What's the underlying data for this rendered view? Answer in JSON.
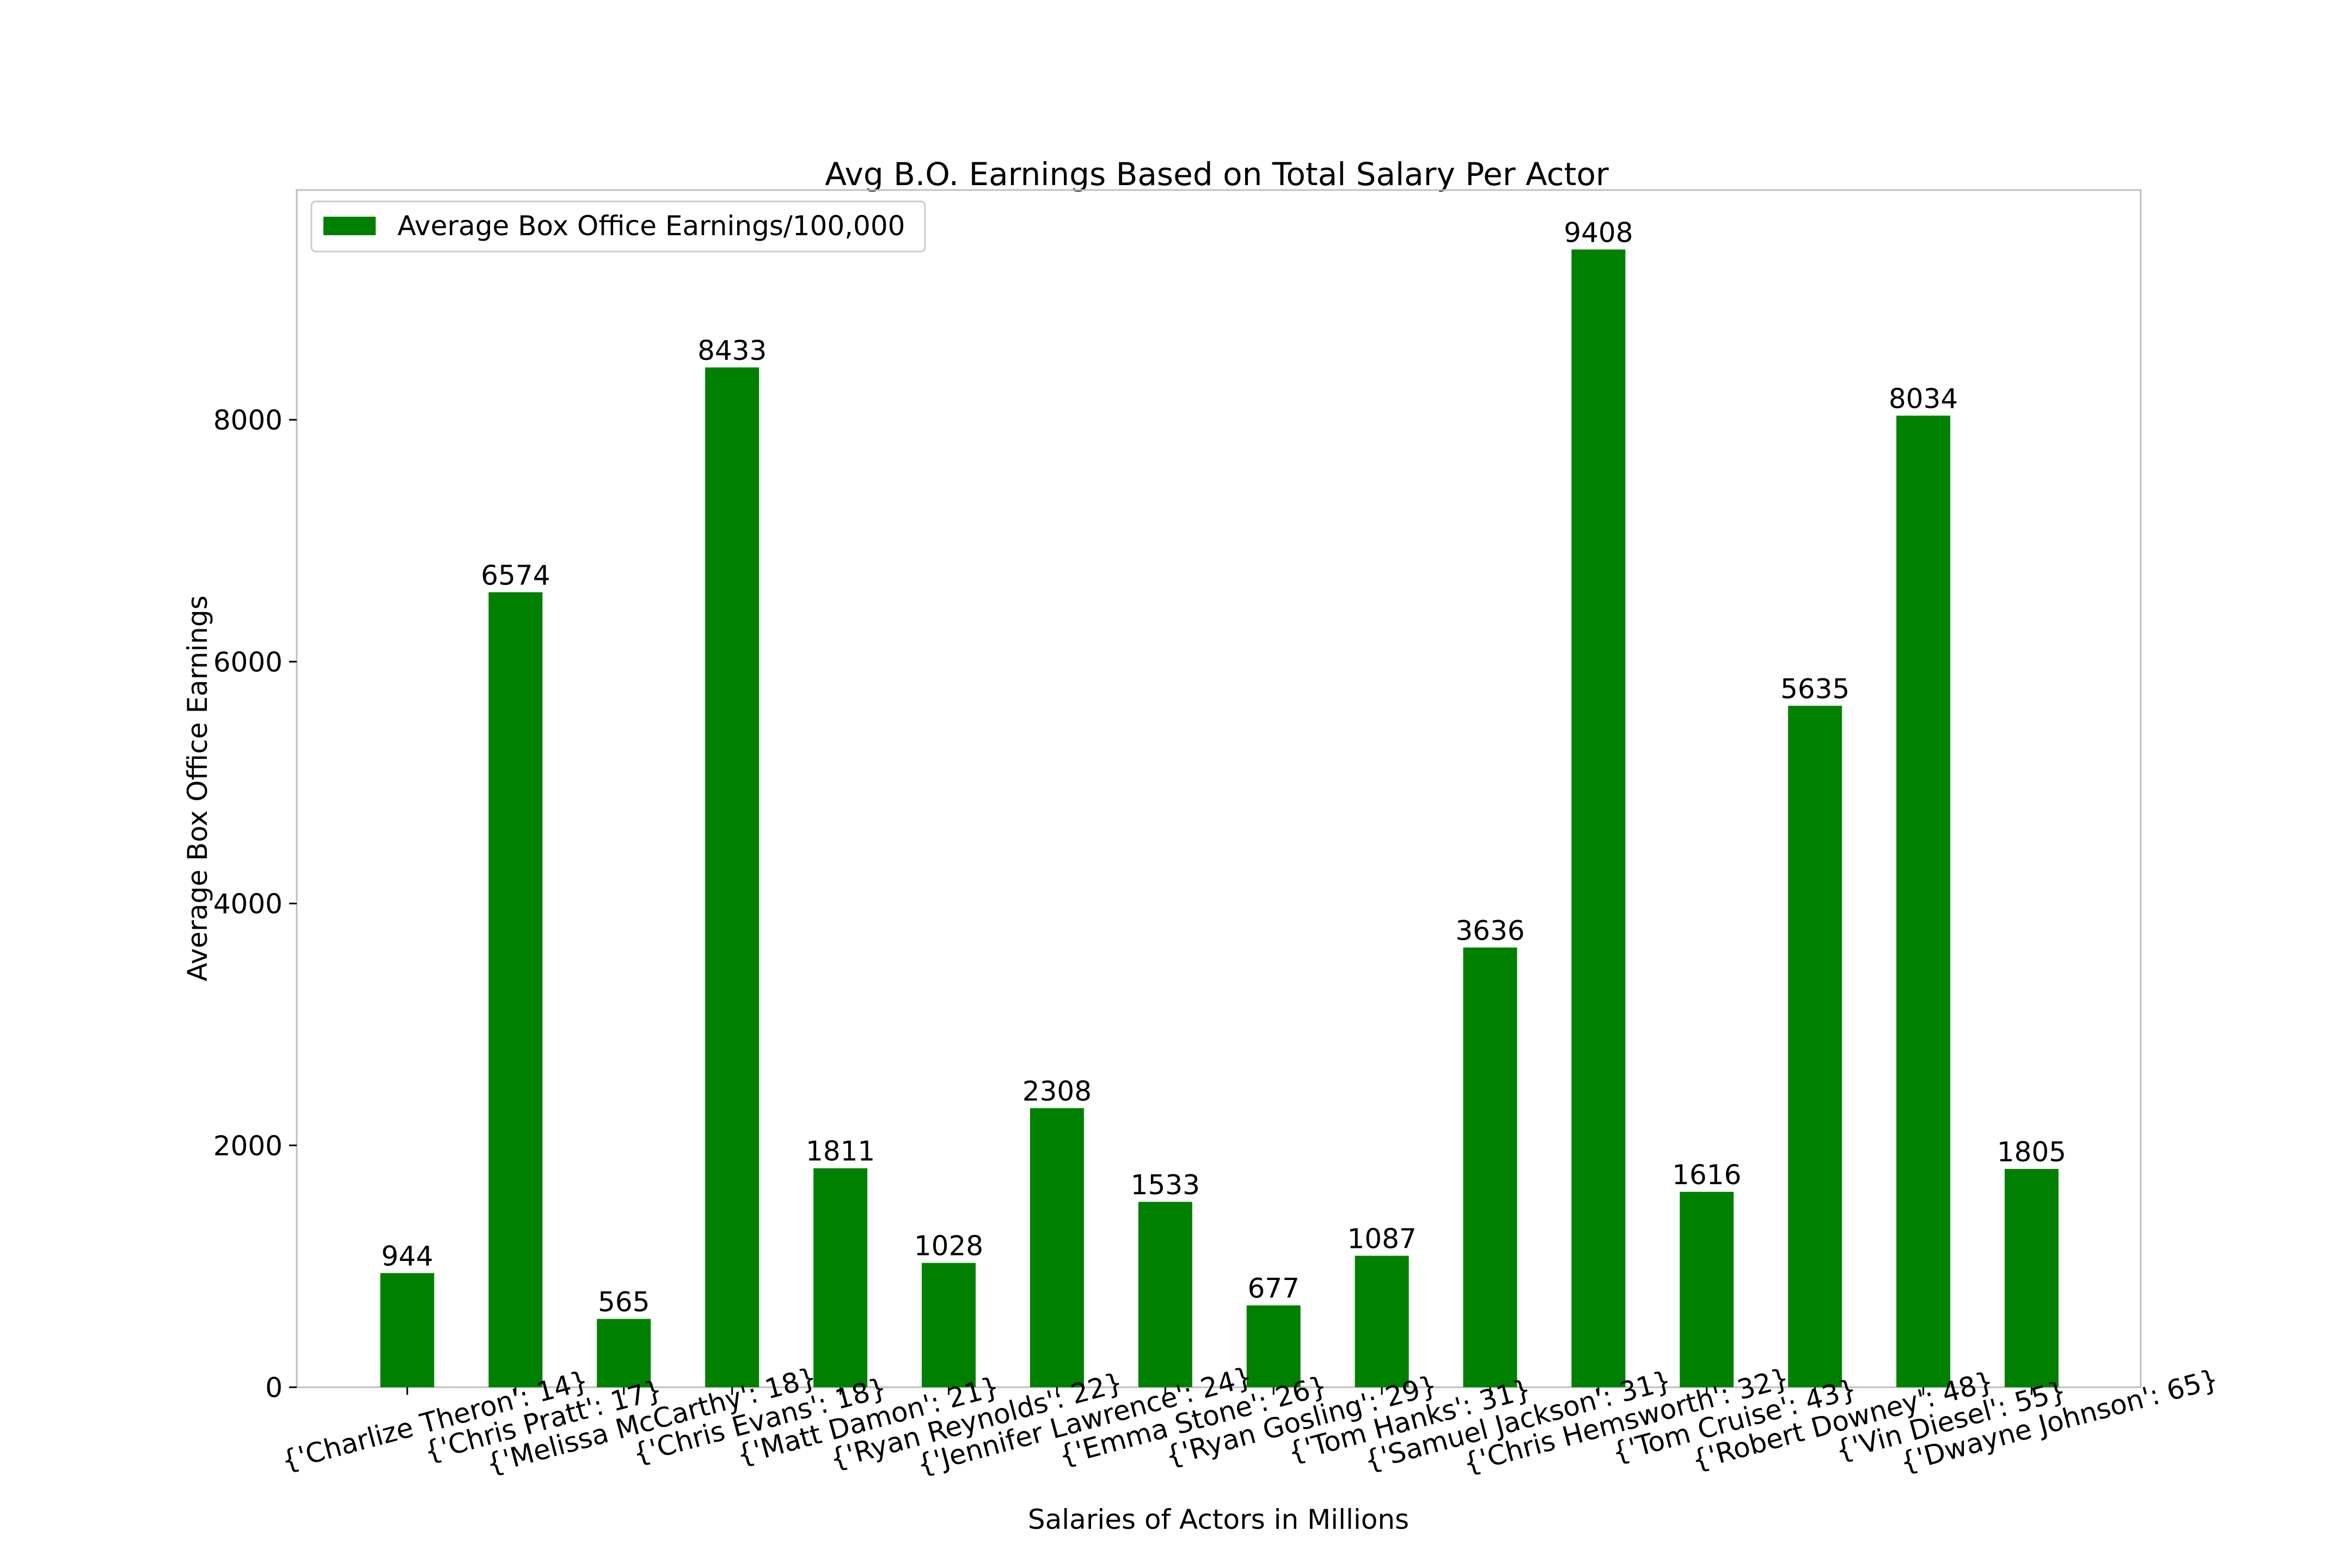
{
  "chart_data": {
    "type": "bar",
    "title": "Avg B.O. Earnings Based on Total Salary Per Actor",
    "xlabel": "Salaries of Actors in Millions",
    "ylabel": "Average Box Office Earnings",
    "ylim": [
      0,
      9900
    ],
    "yticks": [
      0,
      2000,
      4000,
      6000,
      8000
    ],
    "grid": false,
    "legend_position": "top-left",
    "categories": [
      "{'Charlize Theron': 14}",
      "{'Chris Pratt': 17}",
      "{'Melissa McCarthy': 18}",
      "{'Chris Evans': 18}",
      "{'Matt Damon': 21}",
      "{'Ryan Reynolds': 22}",
      "{'Jennifer Lawrence': 24}",
      "{'Emma Stone': 26}",
      "{'Ryan Gosling': 29}",
      "{'Tom Hanks': 31}",
      "{'Samuel Jackson': 31}",
      "{'Chris Hemsworth': 32}",
      "{'Tom Cruise': 43}",
      "{'Robert Downey': 48}",
      "{'Vin Diesel': 55}",
      "{'Dwayne Johnson': 65}"
    ],
    "series": [
      {
        "name": "Average Box Office Earnings/100,000",
        "color": "#008000",
        "values": [
          944,
          6574,
          565,
          8433,
          1811,
          1028,
          2308,
          1533,
          677,
          1087,
          3636,
          9408,
          1616,
          5635,
          8034,
          1805
        ]
      }
    ]
  }
}
